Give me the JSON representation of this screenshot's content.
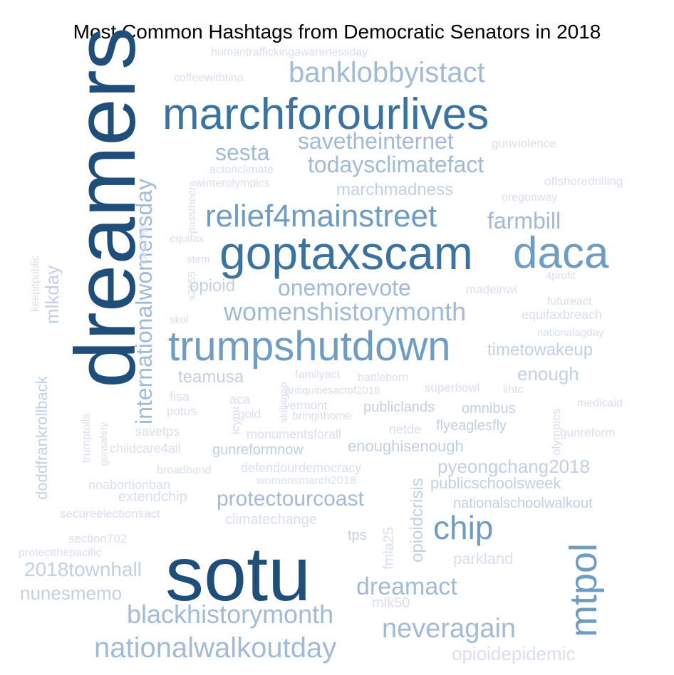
{
  "title": "Most Common Hashtags from Democratic Senators in 2018",
  "palette": {
    "darkest": "#1f4e7a",
    "dark": "#3a72a0",
    "mid": "#6f9cc2",
    "light": "#a3bad6",
    "lighter": "#c3cfe3",
    "lightest": "#d9dfee"
  },
  "words": [
    {
      "text": "dreamers",
      "color": "darkest"
    },
    {
      "text": "sotu",
      "color": "darkest"
    },
    {
      "text": "goptaxscam",
      "color": "dark"
    },
    {
      "text": "marchforourlives",
      "color": "dark"
    },
    {
      "text": "trumpshutdown",
      "color": "mid"
    },
    {
      "text": "daca",
      "color": "mid"
    },
    {
      "text": "mtpol",
      "color": "mid"
    },
    {
      "text": "chip",
      "color": "mid"
    },
    {
      "text": "relief4mainstreet",
      "color": "mid"
    },
    {
      "text": "banklobbyistact",
      "color": "light"
    },
    {
      "text": "womenshistorymonth",
      "color": "light"
    },
    {
      "text": "nationalwalkoutday",
      "color": "light"
    },
    {
      "text": "blackhistorymonth",
      "color": "light"
    },
    {
      "text": "neveragain",
      "color": "light"
    },
    {
      "text": "dreamact",
      "color": "light"
    },
    {
      "text": "savetheinternet",
      "color": "light"
    },
    {
      "text": "sesta",
      "color": "light"
    },
    {
      "text": "todaysclimatefact",
      "color": "light"
    },
    {
      "text": "onemorevote",
      "color": "light"
    },
    {
      "text": "farmbill",
      "color": "light"
    },
    {
      "text": "internationalwomensday",
      "color": "light"
    },
    {
      "text": "protectourcoast",
      "color": "light"
    },
    {
      "text": "2018townhall",
      "color": "lighter"
    },
    {
      "text": "nunesmemo",
      "color": "lighter"
    },
    {
      "text": "opioidepidemic",
      "color": "lightest"
    },
    {
      "text": "timetowakeup",
      "color": "lighter"
    },
    {
      "text": "enough",
      "color": "lighter"
    },
    {
      "text": "teamusa",
      "color": "lighter"
    },
    {
      "text": "mlkday",
      "color": "lighter"
    },
    {
      "text": "opioid",
      "color": "lighter"
    },
    {
      "text": "marchmadness",
      "color": "lighter"
    },
    {
      "text": "pyeongchang2018",
      "color": "lighter"
    },
    {
      "text": "enoughisenough",
      "color": "lighter"
    },
    {
      "text": "gunreformnow",
      "color": "lighter"
    },
    {
      "text": "publicschoolsweek",
      "color": "lighter"
    },
    {
      "text": "nationalschoolwalkout",
      "color": "lighter"
    },
    {
      "text": "opioidcrisis",
      "color": "lighter"
    },
    {
      "text": "doddfrankrollback",
      "color": "lighter"
    },
    {
      "text": "parkland",
      "color": "lightest"
    },
    {
      "text": "publiclands",
      "color": "lighter"
    },
    {
      "text": "omnibus",
      "color": "lighter"
    },
    {
      "text": "flyeaglesfly",
      "color": "lighter"
    },
    {
      "text": "mlk50",
      "color": "lightest"
    },
    {
      "text": "tps",
      "color": "lighter"
    },
    {
      "text": "fmla25",
      "color": "lightest"
    },
    {
      "text": "climatechange",
      "color": "lightest"
    },
    {
      "text": "defendourdemocracy",
      "color": "lightest"
    },
    {
      "text": "womensmarch2018",
      "color": "lightest"
    },
    {
      "text": "extendchip",
      "color": "lightest"
    },
    {
      "text": "noabortionban",
      "color": "lightest"
    },
    {
      "text": "secureelectionsact",
      "color": "lightest"
    },
    {
      "text": "section702",
      "color": "lightest"
    },
    {
      "text": "protectthepacific",
      "color": "lightest"
    },
    {
      "text": "broadband",
      "color": "lightest"
    },
    {
      "text": "childcare4all",
      "color": "lightest"
    },
    {
      "text": "savetps",
      "color": "lightest"
    },
    {
      "text": "potus",
      "color": "lightest"
    },
    {
      "text": "fisa",
      "color": "lightest"
    },
    {
      "text": "icymi",
      "color": "lightest"
    },
    {
      "text": "aca",
      "color": "lightest"
    },
    {
      "text": "gold",
      "color": "lightest"
    },
    {
      "text": "skillsgap",
      "color": "lightest"
    },
    {
      "text": "antiquitiesactof2018",
      "color": "lightest"
    },
    {
      "text": "vermont",
      "color": "lightest"
    },
    {
      "text": "bringithome",
      "color": "lightest"
    },
    {
      "text": "monumentsforall",
      "color": "lightest"
    },
    {
      "text": "netde",
      "color": "lightest"
    },
    {
      "text": "familyact",
      "color": "lightest"
    },
    {
      "text": "battleborn",
      "color": "lightest"
    },
    {
      "text": "superbowl",
      "color": "lightest"
    },
    {
      "text": "lihtc",
      "color": "lightest"
    },
    {
      "text": "olympics",
      "color": "lightest"
    },
    {
      "text": "medicaid",
      "color": "lightest"
    },
    {
      "text": "gunreform",
      "color": "lightest"
    },
    {
      "text": "trumptolls",
      "color": "lightest"
    },
    {
      "text": "gunsafety",
      "color": "lightest"
    },
    {
      "text": "keepitpublic",
      "color": "lightest"
    },
    {
      "text": "townhall",
      "color": "lightest"
    },
    {
      "text": "passtheera",
      "color": "lightest"
    },
    {
      "text": "equifax",
      "color": "lightest"
    },
    {
      "text": "stem",
      "color": "lightest"
    },
    {
      "text": "s2155",
      "color": "lightest"
    },
    {
      "text": "skol",
      "color": "lightest"
    },
    {
      "text": "actonclimate",
      "color": "lightest"
    },
    {
      "text": "winterolympics",
      "color": "lightest"
    },
    {
      "text": "gunviolence",
      "color": "lightest"
    },
    {
      "text": "offshoredrilling",
      "color": "lightest"
    },
    {
      "text": "oregonway",
      "color": "lightest"
    },
    {
      "text": "4profit",
      "color": "lightest"
    },
    {
      "text": "madeinwi",
      "color": "lightest"
    },
    {
      "text": "futureact",
      "color": "lightest"
    },
    {
      "text": "equifaxbreach",
      "color": "lightest"
    },
    {
      "text": "nationalagday",
      "color": "lightest"
    },
    {
      "text": "humantraffickingawarenessday",
      "color": "lightest"
    },
    {
      "text": "coffeewithtina",
      "color": "lightest"
    }
  ]
}
